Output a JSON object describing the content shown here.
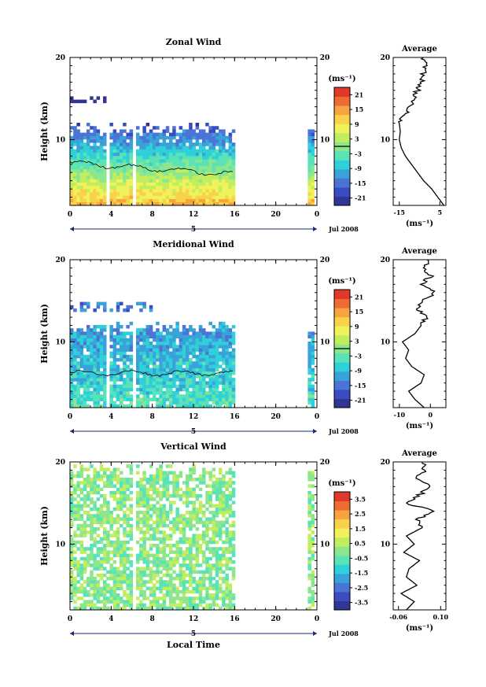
{
  "date_label": "Jul 2008",
  "xlabel_bottom": "Local Time",
  "chart_data": [
    {
      "type": "heatmap",
      "title": "Zonal Wind",
      "ylabel": "Height (km)",
      "unit": "(ms⁻¹)",
      "x_ticks": [
        "0",
        "4",
        "8",
        "12",
        "16",
        "20",
        "0"
      ],
      "day_marker": "5",
      "y_ticks": [
        "10",
        "20"
      ],
      "xlim": [
        0,
        24
      ],
      "ylim": [
        2,
        20
      ],
      "colorbar_ticks": [
        "21",
        "15",
        "9",
        "3",
        "-3",
        "-9",
        "-15",
        "-21"
      ],
      "colorbar_range": [
        -24,
        24
      ],
      "contour_level": 0,
      "colors": [
        "#313695",
        "#3b4cc0",
        "#4a74d6",
        "#39a2d8",
        "#2fd0d8",
        "#59e3b7",
        "#8de68c",
        "#c0ee5e",
        "#eff25a",
        "#f7d24a",
        "#f7a33f",
        "#ee6c34",
        "#e0392b"
      ],
      "data_columns_hours": [
        0,
        16,
        22.6,
        24
      ],
      "profile": {
        "title": "Average",
        "x_ticks": [
          "-15",
          "5"
        ],
        "xlim": [
          -18,
          8
        ],
        "unit": "(ms⁻¹)",
        "heights": [
          2,
          3,
          4,
          5,
          6,
          7,
          8,
          9,
          10,
          11,
          12,
          13,
          14,
          15,
          16,
          17,
          18,
          19,
          20
        ],
        "values": [
          7,
          4,
          1,
          -3,
          -6,
          -9,
          -12,
          -14,
          -15,
          -14.5,
          -15,
          -12,
          -10,
          -8,
          -6,
          -4,
          -3,
          -2,
          -3
        ]
      }
    },
    {
      "type": "heatmap",
      "title": "Meridional Wind",
      "ylabel": "Height (km)",
      "unit": "(ms⁻¹)",
      "x_ticks": [
        "0",
        "4",
        "8",
        "12",
        "16",
        "20",
        "0"
      ],
      "day_marker": "5",
      "y_ticks": [
        "10",
        "20"
      ],
      "xlim": [
        0,
        24
      ],
      "ylim": [
        2,
        20
      ],
      "colorbar_ticks": [
        "21",
        "15",
        "9",
        "3",
        "-3",
        "-9",
        "-15",
        "-21"
      ],
      "colorbar_range": [
        -24,
        24
      ],
      "contour_level": 0,
      "colors": [
        "#313695",
        "#3b4cc0",
        "#4a74d6",
        "#39a2d8",
        "#2fd0d8",
        "#59e3b7",
        "#8de68c",
        "#c0ee5e",
        "#eff25a",
        "#f7d24a",
        "#f7a33f",
        "#ee6c34",
        "#e0392b"
      ],
      "profile": {
        "title": "Average",
        "x_ticks": [
          "-10",
          "0"
        ],
        "xlim": [
          -12,
          5
        ],
        "unit": "(ms⁻¹)",
        "heights": [
          2,
          3,
          4,
          5,
          6,
          7,
          8,
          9,
          10,
          11,
          12,
          13,
          14,
          15,
          16,
          17,
          18,
          19,
          20
        ],
        "values": [
          -2,
          -5,
          -7,
          -3,
          -2,
          -6,
          -8,
          -7,
          -9,
          -5,
          -3,
          -1,
          -4,
          -2,
          1,
          -3,
          0,
          -2,
          -1
        ]
      }
    },
    {
      "type": "heatmap",
      "title": "Vertical Wind",
      "ylabel": "Height (km)",
      "xlabel": "Local Time",
      "unit": "(ms⁻¹)",
      "x_ticks": [
        "0",
        "4",
        "8",
        "12",
        "16",
        "20",
        "0"
      ],
      "day_marker": "5",
      "y_ticks": [
        "10",
        "20"
      ],
      "xlim": [
        0,
        24
      ],
      "ylim": [
        2,
        20
      ],
      "colorbar_ticks": [
        "3.5",
        "2.5",
        "1.5",
        "0.5",
        "-0.5",
        "-1.5",
        "-2.5",
        "-3.5"
      ],
      "colorbar_range": [
        -4,
        4
      ],
      "colors": [
        "#313695",
        "#3b4cc0",
        "#4a74d6",
        "#39a2d8",
        "#2fd0d8",
        "#59e3b7",
        "#8de68c",
        "#c0ee5e",
        "#eff25a",
        "#f7d24a",
        "#f7a33f",
        "#ee6c34",
        "#e0392b"
      ],
      "profile": {
        "title": "Average",
        "x_ticks": [
          "-0.06",
          "0.10"
        ],
        "xlim": [
          -0.08,
          0.12
        ],
        "unit": "(ms⁻¹)",
        "heights": [
          2,
          3,
          4,
          5,
          6,
          7,
          8,
          9,
          10,
          11,
          12,
          13,
          14,
          15,
          16,
          17,
          18,
          19,
          20
        ],
        "values": [
          -0.03,
          0.0,
          -0.05,
          0.01,
          -0.03,
          -0.02,
          0.02,
          -0.04,
          0.0,
          -0.03,
          0.03,
          0.01,
          0.08,
          -0.03,
          0.02,
          0.06,
          0.01,
          0.04,
          0.03
        ]
      }
    }
  ]
}
